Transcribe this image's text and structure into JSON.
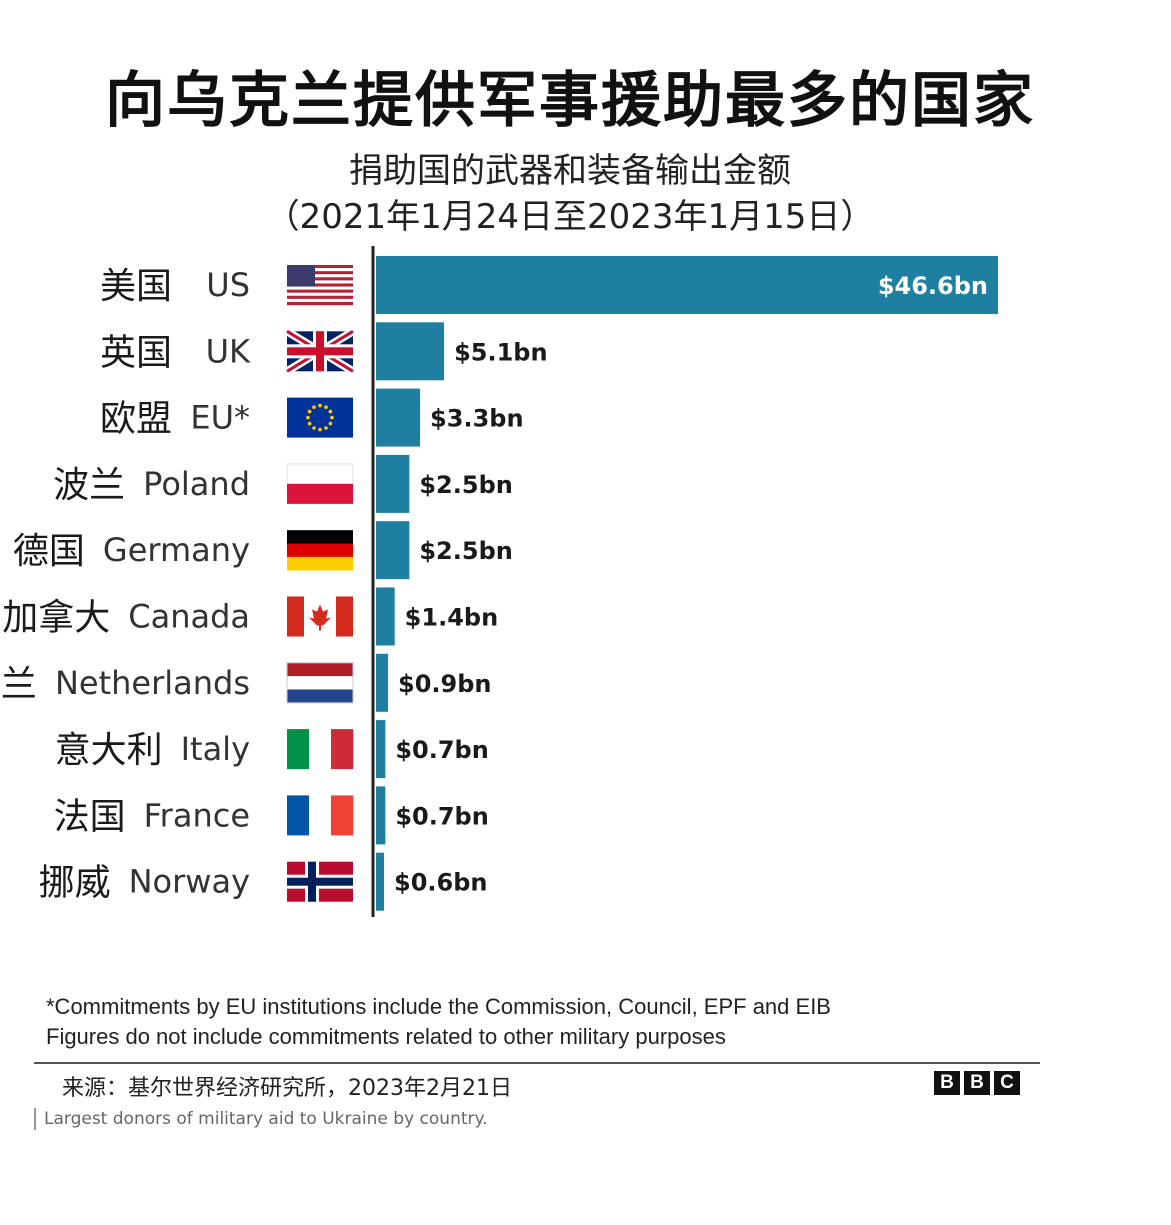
{
  "title": "向乌克兰提供军事援助最多的国家",
  "subtitle_line1": "捐助国的武器和装备输出金额",
  "subtitle_line2": "（2021年1月24日至2023年1月15日）",
  "colors": {
    "bar": "#1e7fa0",
    "axis": "#222222"
  },
  "chart_data": {
    "type": "bar",
    "orientation": "horizontal",
    "unit": "$bn",
    "categories": [
      {
        "cn": "美国",
        "en": "US",
        "flag": "us-flag-icon"
      },
      {
        "cn": "英国",
        "en": "UK",
        "flag": "uk-flag-icon"
      },
      {
        "cn": "欧盟",
        "en": "EU*",
        "flag": "eu-flag-icon"
      },
      {
        "cn": "波兰",
        "en": "Poland",
        "flag": "poland-flag-icon"
      },
      {
        "cn": "德国",
        "en": "Germany",
        "flag": "germany-flag-icon"
      },
      {
        "cn": "加拿大",
        "en": "Canada",
        "flag": "canada-flag-icon"
      },
      {
        "cn": "荷兰",
        "en": "Netherlands",
        "flag": "netherlands-flag-icon"
      },
      {
        "cn": "意大利",
        "en": "Italy",
        "flag": "italy-flag-icon"
      },
      {
        "cn": "法国",
        "en": "France",
        "flag": "france-flag-icon"
      },
      {
        "cn": "挪威",
        "en": "Norway",
        "flag": "norway-flag-icon"
      }
    ],
    "values": [
      46.6,
      5.1,
      3.3,
      2.5,
      2.5,
      1.4,
      0.9,
      0.7,
      0.7,
      0.6
    ],
    "labels": [
      "$46.6bn",
      "$5.1bn",
      "$3.3bn",
      "$2.5bn",
      "$2.5bn",
      "$1.4bn",
      "$0.9bn",
      "$0.7bn",
      "$0.7bn",
      "$0.6bn"
    ],
    "xlim": [
      0,
      46.6
    ]
  },
  "notes": {
    "line1": "*Commitments by EU institutions include the Commission, Council, EPF and EIB",
    "line2": "Figures do not include commitments related to other military purposes"
  },
  "source": "来源：基尔世界经济研究所，2023年2月21日",
  "logo": [
    "B",
    "B",
    "C"
  ],
  "caption": "Largest donors of military aid to Ukraine by country."
}
